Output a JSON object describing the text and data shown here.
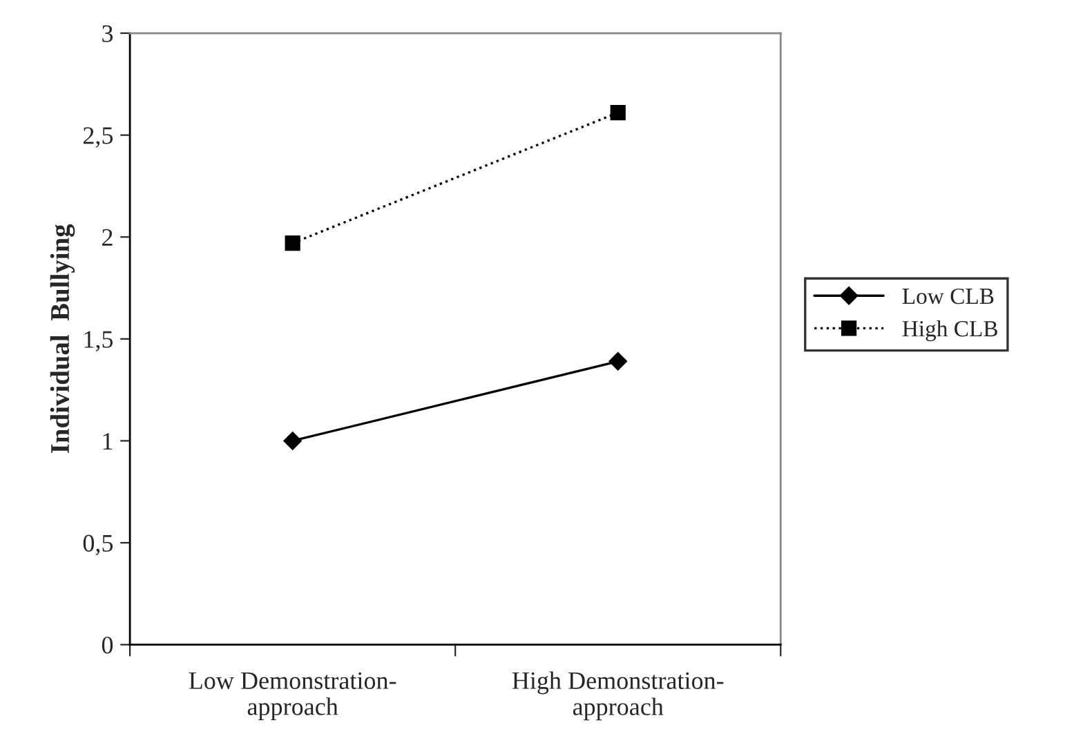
{
  "chart_data": {
    "type": "line",
    "ylabel": "Individual  Bullying",
    "categories": [
      "Low Demonstration-\napproach",
      "High Demonstration-\napproach"
    ],
    "series": [
      {
        "name": "Low CLB",
        "color": "#000000",
        "values": [
          1.0,
          1.39
        ],
        "marker": "diamond",
        "line_style": "solid"
      },
      {
        "name": "High CLB",
        "color": "#000000",
        "values": [
          1.97,
          2.61
        ],
        "marker": "square",
        "line_style": "dotted"
      }
    ],
    "ylim": [
      0,
      3
    ],
    "yticks": [
      0,
      {
        "value": 0.5,
        "label": "0,5"
      },
      1,
      {
        "value": 1.5,
        "label": "1,5"
      },
      2,
      {
        "value": 2.5,
        "label": "2,5"
      },
      3
    ],
    "grid": false,
    "legend": "right"
  }
}
